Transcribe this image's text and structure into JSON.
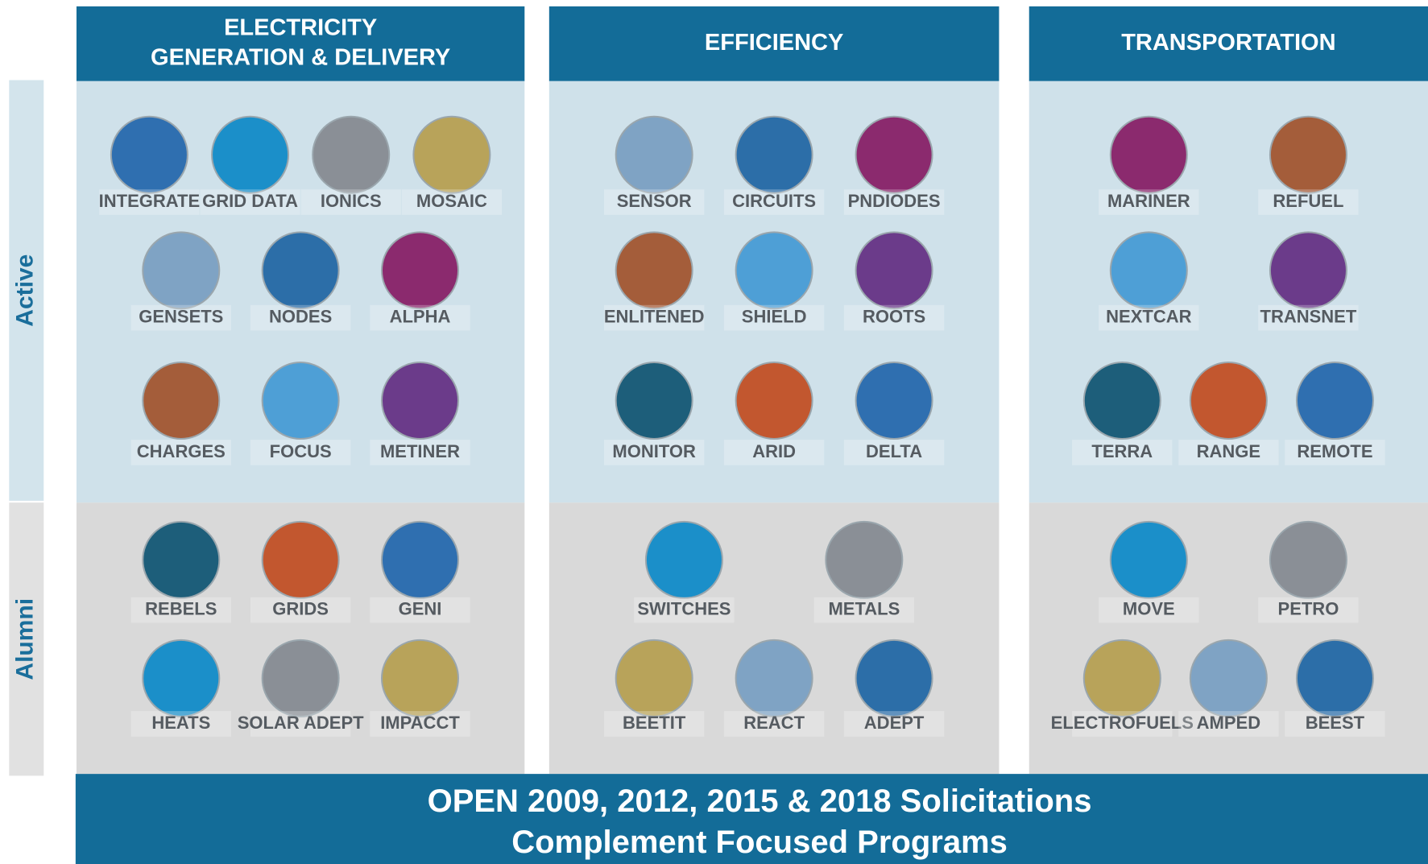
{
  "sections": [
    "Active",
    "Alumni"
  ],
  "columns": [
    {
      "title_lines": [
        "ELECTRICITY",
        "GENERATION & DELIVERY"
      ],
      "active": [
        [
          "INTEGRATE",
          "GRID DATA",
          "IONICS",
          "MOSAIC"
        ],
        [
          "GENSETS",
          "NODES",
          "ALPHA"
        ],
        [
          "CHARGES",
          "FOCUS",
          "METINER"
        ]
      ],
      "alumni": [
        [
          "REBELS",
          "GRIDS",
          "GENI"
        ],
        [
          "HEATS",
          "SOLAR ADEPT",
          "IMPACCT"
        ]
      ]
    },
    {
      "title_lines": [
        "EFFICIENCY"
      ],
      "active": [
        [
          "SENSOR",
          "CIRCUITS",
          "PNDIODES"
        ],
        [
          "ENLITENED",
          "SHIELD",
          "ROOTS"
        ],
        [
          "MONITOR",
          "ARID",
          "DELTA"
        ]
      ],
      "alumni": [
        [
          "SWITCHES",
          "METALS"
        ],
        [
          "BEETIT",
          "REACT",
          "ADEPT"
        ]
      ]
    },
    {
      "title_lines": [
        "TRANSPORTATION"
      ],
      "active": [
        [
          "MARINER",
          "REFUEL"
        ],
        [
          "NEXTCAR",
          "TRANSNET"
        ],
        [
          "TERRA",
          "RANGE",
          "REMOTE"
        ]
      ],
      "alumni": [
        [
          "MOVE",
          "PETRO"
        ],
        [
          "ELECTROFUELS",
          "AMPED",
          "BEEST"
        ]
      ]
    }
  ],
  "banner_lines": [
    "OPEN 2009, 2012, 2015 & 2018 Solicitations",
    "Complement Focused Programs"
  ]
}
